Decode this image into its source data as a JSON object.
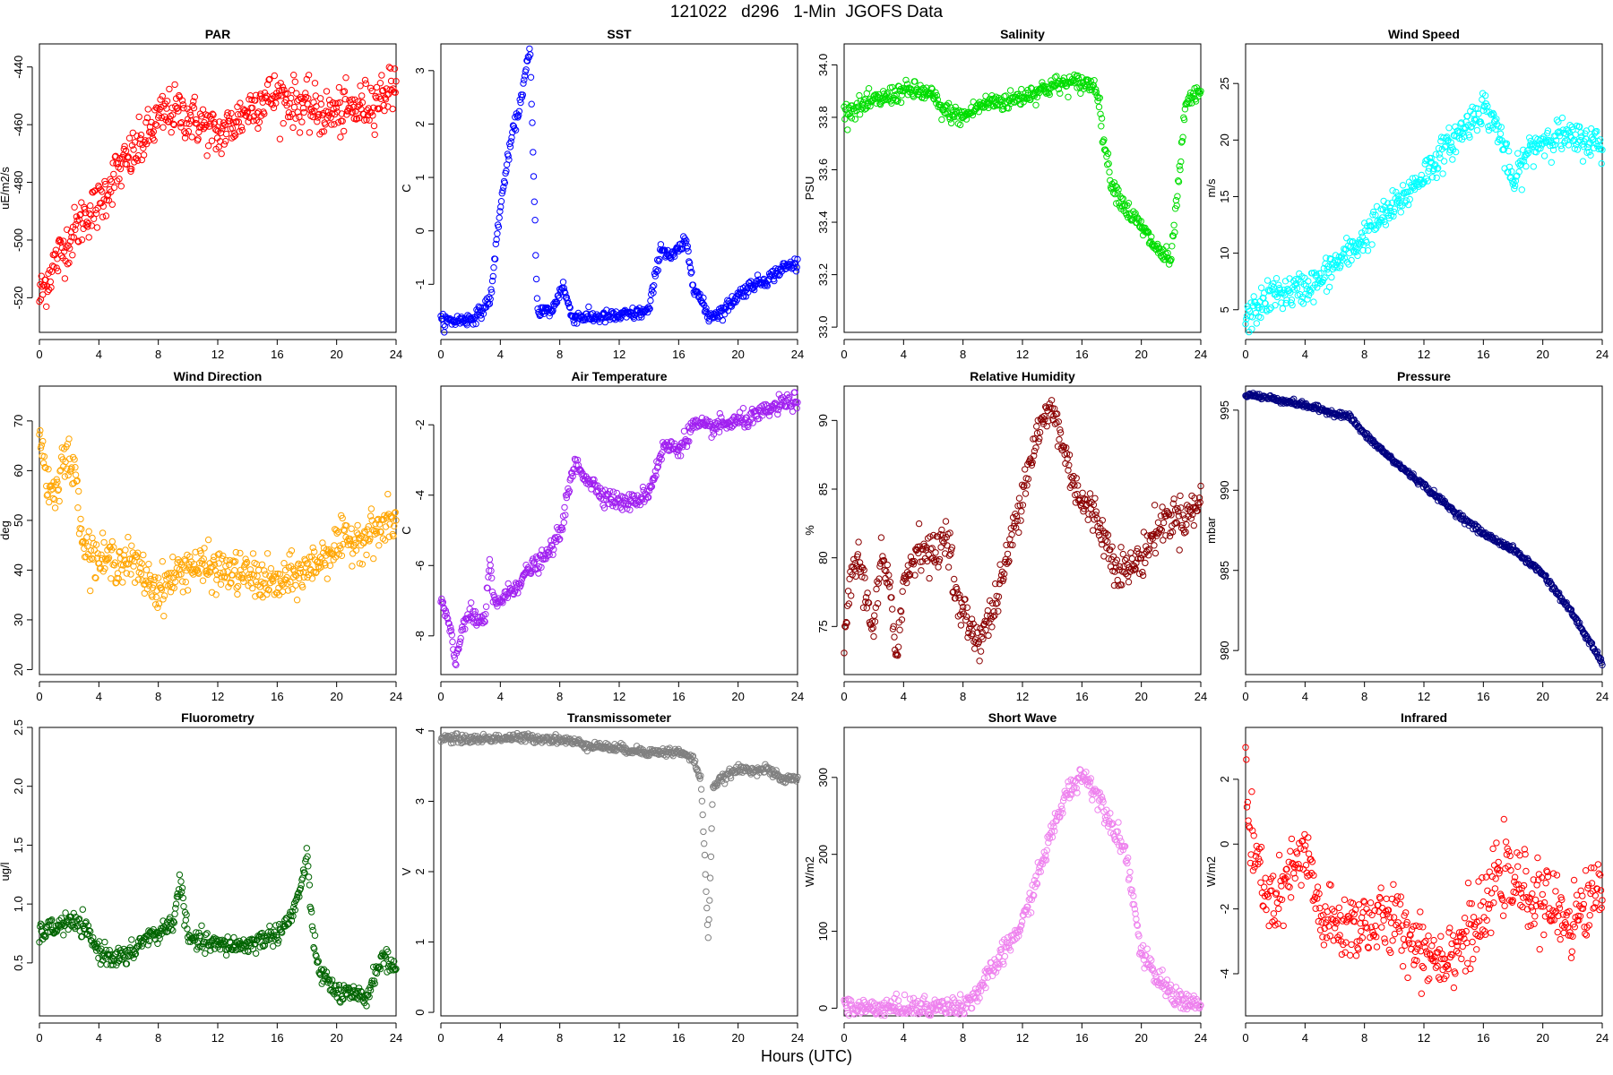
{
  "figure": {
    "title": "121022   d296   1-Min  JGOFS Data",
    "xlabel": "Hours (UTC)"
  },
  "chart_data": [
    {
      "type": "scatter",
      "title": "PAR",
      "ylabel": "uE/m2/s",
      "color": "#ff0000",
      "xlim": [
        0,
        24
      ],
      "ylim": [
        -532,
        -432
      ],
      "xticks": [
        0,
        4,
        8,
        12,
        16,
        20,
        24
      ],
      "yticks": [
        -520,
        -500,
        -480,
        -460,
        -440
      ],
      "x": [
        0,
        1,
        2,
        3,
        4,
        5,
        6,
        7,
        8,
        9,
        10,
        11,
        12,
        13,
        14,
        15,
        16,
        17,
        18,
        19,
        20,
        21,
        22,
        23,
        24
      ],
      "y": [
        -520,
        -508,
        -500,
        -492,
        -488,
        -478,
        -472,
        -466,
        -458,
        -455,
        -457,
        -460,
        -464,
        -460,
        -455,
        -451,
        -450,
        -452,
        -454,
        -456,
        -456,
        -455,
        -453,
        -450,
        -445
      ],
      "spread": 7
    },
    {
      "type": "scatter",
      "title": "SST",
      "ylabel": "C",
      "color": "#0000ff",
      "xlim": [
        0,
        24
      ],
      "ylim": [
        -1.9,
        3.5
      ],
      "xticks": [
        0,
        4,
        8,
        12,
        16,
        20,
        24
      ],
      "yticks": [
        -1,
        0,
        1,
        2,
        3
      ],
      "x": [
        0,
        1,
        2,
        2.8,
        3.4,
        3.8,
        4.3,
        4.8,
        5.2,
        5.6,
        6,
        6.5,
        7.5,
        8.2,
        8.8,
        10,
        12,
        14,
        14.8,
        15.5,
        16.5,
        17,
        18,
        19,
        20,
        21,
        22,
        23,
        24
      ],
      "y": [
        -1.7,
        -1.68,
        -1.65,
        -1.5,
        -1.2,
        0,
        1.0,
        1.8,
        2.2,
        2.8,
        3.4,
        -1.5,
        -1.5,
        -1.0,
        -1.6,
        -1.62,
        -1.6,
        -1.5,
        -0.3,
        -0.5,
        -0.2,
        -1.0,
        -1.6,
        -1.5,
        -1.2,
        -1.0,
        -0.9,
        -0.7,
        -0.6
      ],
      "spread": 0.1
    },
    {
      "type": "scatter",
      "title": "Salinity",
      "ylabel": "PSU",
      "color": "#00dd00",
      "xlim": [
        0,
        24
      ],
      "ylim": [
        32.98,
        34.08
      ],
      "xticks": [
        0,
        4,
        8,
        12,
        16,
        20,
        24
      ],
      "yticks": [
        33.0,
        33.2,
        33.4,
        33.6,
        33.8,
        34.0
      ],
      "x": [
        0,
        1,
        2,
        3,
        4,
        5,
        6,
        6.5,
        8,
        9,
        10,
        11,
        12,
        13,
        14,
        15,
        16,
        17,
        17.5,
        18,
        19,
        20,
        21,
        22,
        23,
        24
      ],
      "y": [
        33.82,
        33.84,
        33.86,
        33.88,
        33.9,
        33.9,
        33.88,
        33.83,
        33.8,
        33.84,
        33.86,
        33.86,
        33.88,
        33.9,
        33.92,
        33.93,
        33.93,
        33.92,
        33.7,
        33.55,
        33.45,
        33.38,
        33.3,
        33.25,
        33.85,
        33.9
      ],
      "spread": 0.03
    },
    {
      "type": "scatter",
      "title": "Wind Speed",
      "ylabel": "m/s",
      "color": "#00ffff",
      "xlim": [
        0,
        24
      ],
      "ylim": [
        3,
        28.5
      ],
      "xticks": [
        0,
        4,
        8,
        12,
        16,
        20,
        24
      ],
      "yticks": [
        5,
        10,
        15,
        20,
        25
      ],
      "x": [
        0,
        1,
        2,
        3,
        4,
        5,
        6,
        7,
        8,
        9,
        10,
        11,
        12,
        13,
        14,
        15,
        16,
        17,
        18,
        19,
        20,
        21,
        22,
        23,
        24
      ],
      "y": [
        4,
        5.5,
        6.5,
        6.5,
        7,
        7.5,
        9,
        10,
        11.5,
        13,
        14,
        15.5,
        17,
        18.5,
        20,
        21.5,
        23,
        21,
        16,
        19,
        20,
        20.5,
        20,
        20,
        19.5
      ],
      "spread": 1.2
    },
    {
      "type": "scatter",
      "title": "Wind Direction",
      "ylabel": "deg",
      "color": "#ffa500",
      "xlim": [
        0,
        24
      ],
      "ylim": [
        19,
        77
      ],
      "xticks": [
        0,
        4,
        8,
        12,
        16,
        20,
        24
      ],
      "yticks": [
        20,
        30,
        40,
        50,
        60,
        70
      ],
      "x": [
        0,
        0.5,
        1,
        1.5,
        2,
        2.5,
        3,
        4,
        6,
        8,
        10,
        12,
        14,
        16,
        18,
        20,
        22,
        24
      ],
      "y": [
        68,
        58,
        55,
        62,
        62,
        58,
        45,
        42,
        42,
        36,
        41,
        40,
        39,
        37,
        40,
        45,
        47,
        50
      ],
      "spread": 3.5
    },
    {
      "type": "scatter",
      "title": "Air Temperature",
      "ylabel": "C",
      "color": "#a020f0",
      "xlim": [
        0,
        24
      ],
      "ylim": [
        -9.1,
        -0.9
      ],
      "xticks": [
        0,
        4,
        8,
        12,
        16,
        20,
        24
      ],
      "yticks": [
        -8,
        -6,
        -4,
        -2
      ],
      "x": [
        0,
        0.5,
        1,
        1.5,
        2,
        2.5,
        3,
        3.3,
        3.5,
        4,
        5,
        6,
        7,
        8,
        9,
        10,
        11,
        12,
        13,
        14,
        15,
        16,
        17,
        18,
        19,
        20,
        21,
        22,
        23,
        24
      ],
      "y": [
        -7,
        -7.6,
        -8.8,
        -7.6,
        -7.4,
        -7.6,
        -7.5,
        -5.8,
        -7.0,
        -7.0,
        -6.6,
        -6.1,
        -5.8,
        -5.1,
        -3.1,
        -3.6,
        -4.0,
        -4.2,
        -4.2,
        -3.9,
        -2.6,
        -2.7,
        -2.0,
        -2.1,
        -2.0,
        -1.9,
        -1.8,
        -1.6,
        -1.4,
        -1.3
      ],
      "spread": 0.2
    },
    {
      "type": "scatter",
      "title": "Relative Humidity",
      "ylabel": "%",
      "color": "#8b0000",
      "xlim": [
        0,
        24
      ],
      "ylim": [
        71.5,
        92.5
      ],
      "xticks": [
        0,
        4,
        8,
        12,
        16,
        20,
        24
      ],
      "yticks": [
        75,
        80,
        85,
        90
      ],
      "x": [
        0,
        0.5,
        1,
        1.5,
        2,
        2.5,
        3,
        3.5,
        4,
        5,
        6,
        7,
        7.5,
        8,
        9,
        10,
        11,
        12,
        13,
        14,
        15,
        16,
        17,
        18,
        19,
        20,
        21,
        22,
        23,
        24
      ],
      "y": [
        73,
        79,
        80,
        77,
        75,
        80,
        78,
        73,
        78,
        81,
        80,
        82,
        77,
        76,
        74,
        76,
        80,
        85,
        89,
        91,
        87,
        84,
        83,
        80,
        79,
        80,
        82,
        83,
        83,
        84
      ],
      "spread": 1.2
    },
    {
      "type": "scatter",
      "title": "Pressure",
      "ylabel": "mbar",
      "color": "#000080",
      "xlim": [
        0,
        24
      ],
      "ylim": [
        978.5,
        996.5
      ],
      "xticks": [
        0,
        4,
        8,
        12,
        16,
        20,
        24
      ],
      "yticks": [
        980,
        985,
        990,
        995
      ],
      "x": [
        0,
        2,
        4,
        6,
        7,
        8,
        10,
        12,
        14,
        16,
        18,
        20,
        22,
        24
      ],
      "y": [
        996,
        995.7,
        995.3,
        994.8,
        994.6,
        993.5,
        991.8,
        990.3,
        988.7,
        987.3,
        986.3,
        984.8,
        982.3,
        979.2
      ],
      "spread": 0.15
    },
    {
      "type": "scatter",
      "title": "Fluorometry",
      "ylabel": "ug/l",
      "color": "#006400",
      "xlim": [
        0,
        24
      ],
      "ylim": [
        0.05,
        2.5
      ],
      "xticks": [
        0,
        4,
        8,
        12,
        16,
        20,
        24
      ],
      "yticks": [
        0.5,
        1.0,
        1.5,
        2.0,
        2.5
      ],
      "x": [
        0,
        1,
        2,
        3,
        4,
        5,
        6,
        7,
        8,
        9,
        9.5,
        10,
        12,
        14,
        15,
        16,
        17,
        17.5,
        18,
        18.5,
        19,
        20,
        21,
        22,
        23,
        24
      ],
      "y": [
        0.75,
        0.8,
        0.85,
        0.8,
        0.6,
        0.55,
        0.55,
        0.7,
        0.75,
        0.85,
        1.2,
        0.7,
        0.65,
        0.65,
        0.7,
        0.75,
        0.9,
        1.1,
        1.4,
        0.6,
        0.4,
        0.25,
        0.22,
        0.2,
        0.55,
        0.45
      ],
      "spread": 0.07
    },
    {
      "type": "scatter",
      "title": "Transmissometer",
      "ylabel": "V",
      "color": "#808080",
      "xlim": [
        0,
        24
      ],
      "ylim": [
        -0.05,
        4.05
      ],
      "xticks": [
        0,
        4,
        8,
        12,
        16,
        20,
        24
      ],
      "yticks": [
        0,
        1,
        2,
        3,
        4
      ],
      "x": [
        0,
        2,
        4,
        6,
        8,
        10,
        12,
        14,
        16,
        17,
        17.5,
        17.8,
        18,
        18.3,
        18.8,
        19.5,
        20,
        22,
        23,
        24
      ],
      "y": [
        3.9,
        3.88,
        3.9,
        3.9,
        3.88,
        3.8,
        3.75,
        3.7,
        3.7,
        3.6,
        3.3,
        2.0,
        1.0,
        3.2,
        3.3,
        3.4,
        3.45,
        3.45,
        3.3,
        3.35
      ],
      "spread": 0.05
    },
    {
      "type": "scatter",
      "title": "Short Wave",
      "ylabel": "W/m2",
      "color": "#ee82ee",
      "xlim": [
        0,
        24
      ],
      "ylim": [
        -10,
        365
      ],
      "xticks": [
        0,
        4,
        8,
        12,
        16,
        20,
        24
      ],
      "yticks": [
        0,
        100,
        200,
        300
      ],
      "x": [
        0,
        2,
        4,
        6,
        8,
        9,
        10,
        11,
        12,
        13,
        14,
        15,
        16,
        17,
        18,
        19,
        20,
        21,
        22,
        23,
        24
      ],
      "y": [
        0,
        0,
        0,
        1,
        3,
        20,
        50,
        80,
        110,
        170,
        230,
        280,
        305,
        280,
        240,
        200,
        70,
        40,
        20,
        8,
        3
      ],
      "spread": 12
    },
    {
      "type": "scatter",
      "title": "Infrared",
      "ylabel": "W/m2",
      "color": "#ff0000",
      "xlim": [
        0,
        24
      ],
      "ylim": [
        -5.3,
        3.6
      ],
      "xticks": [
        0,
        4,
        8,
        12,
        16,
        20,
        24
      ],
      "yticks": [
        -4,
        -2,
        0,
        2
      ],
      "x": [
        0,
        0.3,
        1,
        2,
        3,
        4,
        5,
        6,
        8,
        10,
        12,
        13,
        14,
        16,
        17,
        18,
        20,
        22,
        24
      ],
      "y": [
        2.5,
        0,
        -1,
        -2,
        -1,
        -0.3,
        -2.2,
        -2.6,
        -2.4,
        -2.4,
        -3.2,
        -3.5,
        -3.2,
        -2.4,
        -0.8,
        -1.2,
        -1.8,
        -2.4,
        -1.2
      ],
      "spread": 0.9
    }
  ]
}
